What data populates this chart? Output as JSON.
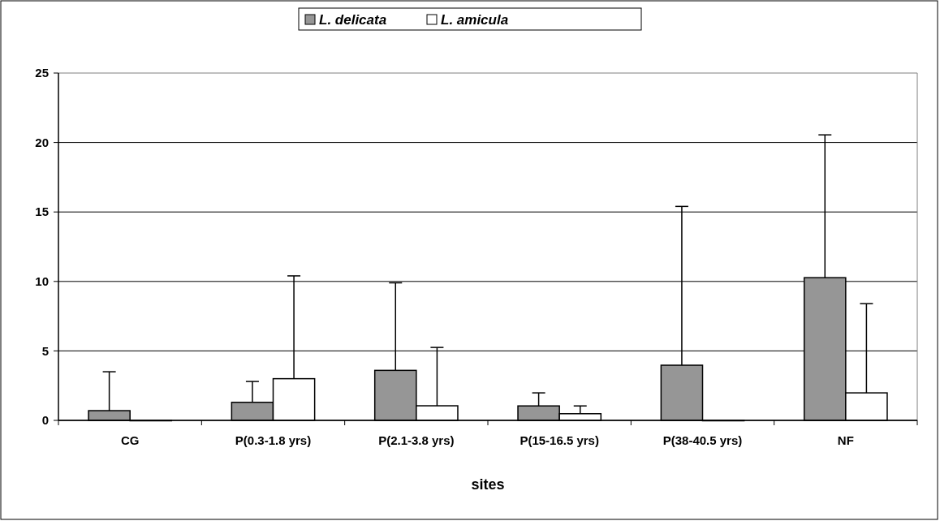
{
  "chart_data": {
    "type": "bar",
    "xlabel": "sites",
    "categories": [
      "CG",
      "P(0.3-1.8 yrs)",
      "P(2.1-3.8 yrs)",
      "P(15-16.5 yrs)",
      "P(38-40.5 yrs)",
      "NF"
    ],
    "series": [
      {
        "name": "L. delicata",
        "color": "#969696",
        "values": [
          0.7,
          1.3,
          3.6,
          1.04,
          3.97,
          10.27
        ],
        "errors": [
          [
            0.7,
            3.5
          ],
          [
            1.3,
            2.8
          ],
          [
            3.6,
            9.9
          ],
          [
            1.04,
            1.98
          ],
          [
            3.97,
            15.4
          ],
          [
            10.27,
            20.55
          ]
        ]
      },
      {
        "name": "L. amicula",
        "color": "#ffffff",
        "values": [
          0,
          3.0,
          1.05,
          0.48,
          0,
          1.98
        ],
        "errors": [
          null,
          [
            3.0,
            10.4
          ],
          [
            1.05,
            5.25
          ],
          [
            0.48,
            1.04
          ],
          null,
          [
            1.98,
            8.4
          ]
        ]
      }
    ],
    "ylim": [
      0,
      25
    ],
    "yticks": [
      0,
      5,
      10,
      15,
      20,
      25
    ],
    "grid": "y",
    "legend": "top"
  }
}
